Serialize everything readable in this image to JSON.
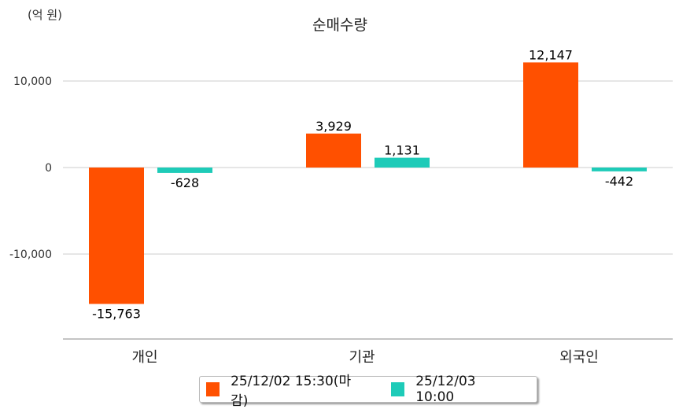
{
  "chart_data": {
    "type": "bar",
    "title": "순매수량",
    "unit_label": "(억 원)",
    "categories": [
      "개인",
      "기관",
      "외국인"
    ],
    "series": [
      {
        "name": "25/12/02 15:30(마감)",
        "color": "#ff5000",
        "values": [
          -15763,
          3929,
          12147
        ],
        "labels": [
          "-15,763",
          "3,929",
          "12,147"
        ]
      },
      {
        "name": "25/12/03 10:00",
        "color": "#1ecbb8",
        "values": [
          -628,
          1131,
          -442
        ],
        "labels": [
          "-628",
          "1,131",
          "-442"
        ]
      }
    ],
    "yticks": [
      10000,
      0,
      -10000
    ],
    "ytick_labels": [
      "10,000",
      "0",
      "-10,000"
    ],
    "ylim": [
      -19700,
      14500
    ],
    "grid": true,
    "legend": "bottom-center"
  }
}
